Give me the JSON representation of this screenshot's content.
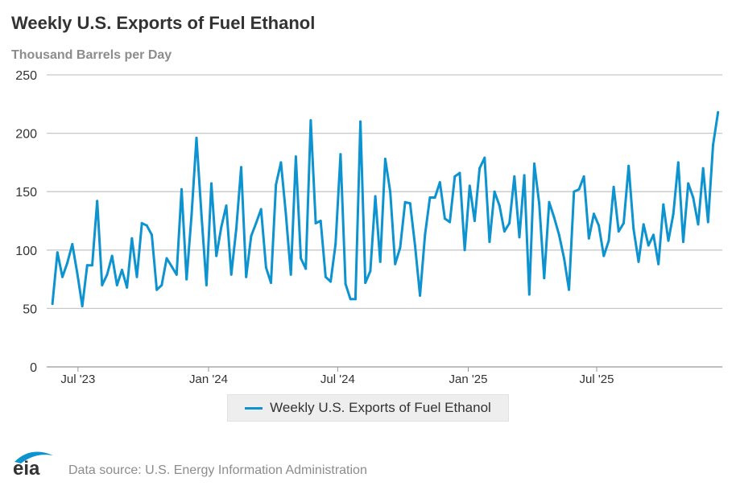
{
  "chart_data": {
    "type": "line",
    "title": "Weekly U.S. Exports of Fuel Ethanol",
    "ylabel": "Thousand Barrels per Day",
    "ylim": [
      0,
      250
    ],
    "yticks": [
      0,
      50,
      100,
      150,
      200,
      250
    ],
    "xticks": [
      {
        "date": "2023-07-01",
        "label": "Jul '23"
      },
      {
        "date": "2024-01-01",
        "label": "Jan '24"
      },
      {
        "date": "2024-07-01",
        "label": "Jul '24"
      },
      {
        "date": "2025-01-01",
        "label": "Jan '25"
      },
      {
        "date": "2025-07-01",
        "label": "Jul '25"
      }
    ],
    "grid": true,
    "legend_placement": "bottom",
    "color": "#0c93d0",
    "series": [
      {
        "name": "Weekly U.S. Exports of Fuel Ethanol",
        "x": [
          "2023-05-26",
          "2023-06-02",
          "2023-06-09",
          "2023-06-16",
          "2023-06-23",
          "2023-06-30",
          "2023-07-07",
          "2023-07-14",
          "2023-07-21",
          "2023-07-28",
          "2023-08-04",
          "2023-08-11",
          "2023-08-18",
          "2023-08-25",
          "2023-09-01",
          "2023-09-08",
          "2023-09-15",
          "2023-09-22",
          "2023-09-29",
          "2023-10-06",
          "2023-10-13",
          "2023-10-20",
          "2023-10-27",
          "2023-11-03",
          "2023-11-10",
          "2023-11-17",
          "2023-11-24",
          "2023-12-01",
          "2023-12-08",
          "2023-12-15",
          "2023-12-22",
          "2023-12-29",
          "2024-01-05",
          "2024-01-12",
          "2024-01-19",
          "2024-01-26",
          "2024-02-02",
          "2024-02-09",
          "2024-02-16",
          "2024-02-23",
          "2024-03-01",
          "2024-03-08",
          "2024-03-15",
          "2024-03-22",
          "2024-03-29",
          "2024-04-05",
          "2024-04-12",
          "2024-04-19",
          "2024-04-26",
          "2024-05-03",
          "2024-05-10",
          "2024-05-17",
          "2024-05-24",
          "2024-05-31",
          "2024-06-07",
          "2024-06-14",
          "2024-06-21",
          "2024-06-28",
          "2024-07-05",
          "2024-07-12",
          "2024-07-19",
          "2024-07-26",
          "2024-08-02",
          "2024-08-09",
          "2024-08-16",
          "2024-08-23",
          "2024-08-30",
          "2024-09-06",
          "2024-09-13",
          "2024-09-20",
          "2024-09-27",
          "2024-10-04",
          "2024-10-11",
          "2024-10-18",
          "2024-10-25",
          "2024-11-01",
          "2024-11-08",
          "2024-11-15",
          "2024-11-22",
          "2024-11-29",
          "2024-12-06",
          "2024-12-13",
          "2024-12-20",
          "2024-12-27",
          "2025-01-03",
          "2025-01-10",
          "2025-01-17",
          "2025-01-24",
          "2025-01-31",
          "2025-02-07",
          "2025-02-14",
          "2025-02-21",
          "2025-02-28",
          "2025-03-07",
          "2025-03-14",
          "2025-03-21",
          "2025-03-28",
          "2025-04-04",
          "2025-04-11",
          "2025-04-18",
          "2025-04-25",
          "2025-05-02",
          "2025-05-09",
          "2025-05-16",
          "2025-05-23",
          "2025-05-30",
          "2025-06-06",
          "2025-06-13",
          "2025-06-20",
          "2025-06-27",
          "2025-07-04",
          "2025-07-11",
          "2025-07-18",
          "2025-07-25",
          "2025-08-01",
          "2025-08-08",
          "2025-08-15",
          "2025-08-22",
          "2025-08-29",
          "2025-09-05",
          "2025-09-12",
          "2025-09-19",
          "2025-09-26",
          "2025-10-03",
          "2025-10-10",
          "2025-10-17",
          "2025-10-24",
          "2025-10-31",
          "2025-11-07",
          "2025-11-14",
          "2025-11-21",
          "2025-11-28",
          "2025-12-05",
          "2025-12-12",
          "2025-12-19"
        ],
        "values": [
          54,
          98,
          77,
          89,
          105,
          80,
          52,
          87,
          87,
          142,
          70,
          79,
          95,
          70,
          83,
          68,
          110,
          77,
          123,
          121,
          113,
          66,
          70,
          93,
          86,
          79,
          152,
          75,
          130,
          196,
          130,
          70,
          157,
          95,
          120,
          138,
          79,
          118,
          171,
          77,
          112,
          123,
          135,
          85,
          72,
          156,
          175,
          131,
          79,
          180,
          93,
          84,
          211,
          123,
          125,
          77,
          73,
          105,
          182,
          71,
          58,
          58,
          210,
          72,
          82,
          146,
          90,
          178,
          150,
          88,
          102,
          141,
          140,
          104,
          61,
          113,
          145,
          145,
          158,
          127,
          124,
          163,
          166,
          100,
          155,
          125,
          170,
          179,
          107,
          150,
          138,
          116,
          123,
          163,
          111,
          164,
          62,
          174,
          140,
          76,
          141,
          128,
          113,
          93,
          66,
          150,
          152,
          163,
          110,
          131,
          121,
          95,
          108,
          154,
          116,
          123,
          172,
          118,
          90,
          122,
          104,
          113,
          88,
          139,
          108,
          131,
          175,
          107,
          157,
          145,
          122,
          170,
          124,
          190,
          218
        ]
      }
    ]
  },
  "footer": {
    "source": "Data source: U.S. Energy Information Administration",
    "logo_text": "eia"
  }
}
